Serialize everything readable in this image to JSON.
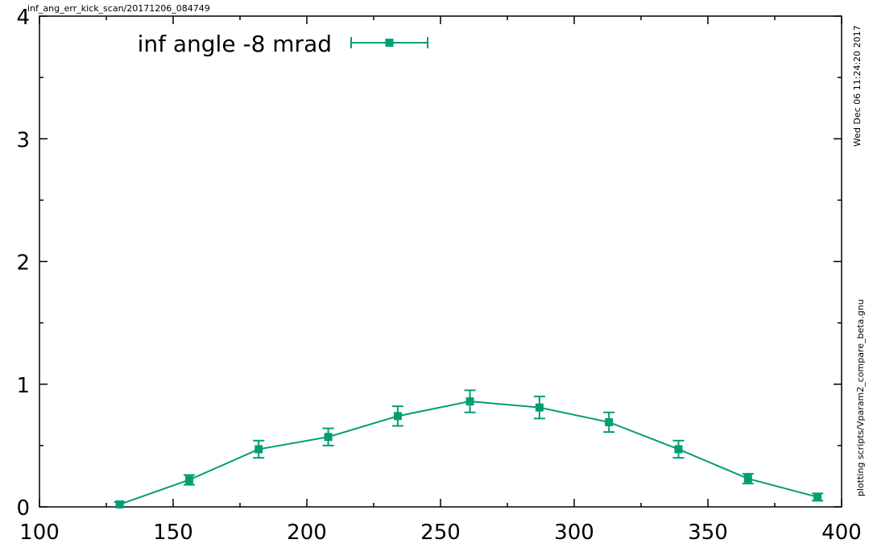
{
  "chart_data": {
    "type": "line",
    "title": "inf_ang_err_kick_scan/20171206_084749",
    "xlabel": "",
    "ylabel": "",
    "xlim": [
      100,
      400
    ],
    "ylim": [
      0,
      4
    ],
    "xticks": [
      100,
      150,
      200,
      250,
      300,
      350,
      400
    ],
    "yticks": [
      0,
      1,
      2,
      3,
      4
    ],
    "ytick_labels": [
      "0",
      "1",
      "2",
      "3",
      "4"
    ],
    "grid": false,
    "legend_position": "top-left",
    "side_labels": {
      "timestamp": "Wed Dec 06 11:24:20 2017",
      "script": "plotting scripts/Vparam2_compare_beta.gnu"
    },
    "series": [
      {
        "name": "inf angle -8 mrad",
        "color": "#009e73",
        "marker": "square",
        "x": [
          130,
          156,
          182,
          208,
          234,
          261,
          287,
          313,
          339,
          365,
          391
        ],
        "y": [
          0.02,
          0.22,
          0.47,
          0.57,
          0.74,
          0.86,
          0.81,
          0.69,
          0.47,
          0.23,
          0.08
        ],
        "err": [
          0.02,
          0.04,
          0.07,
          0.07,
          0.08,
          0.09,
          0.09,
          0.08,
          0.07,
          0.04,
          0.03
        ]
      }
    ]
  }
}
